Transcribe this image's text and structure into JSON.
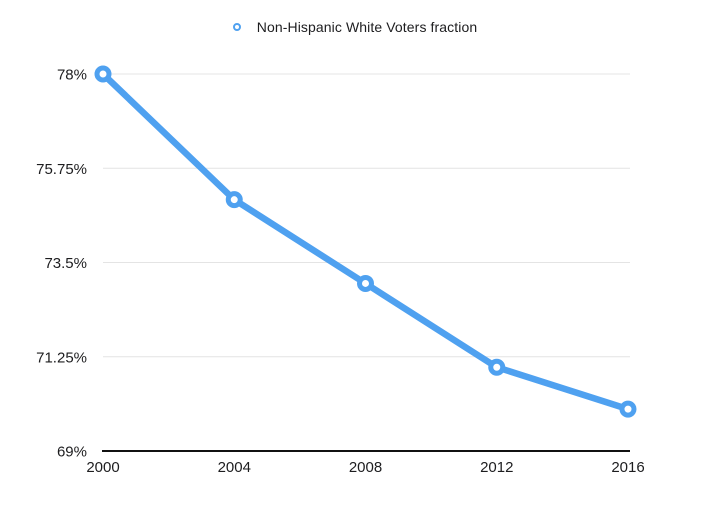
{
  "legend": {
    "label": "Non-Hispanic White Voters fraction",
    "marker": "ring-icon"
  },
  "chart_data": {
    "type": "line",
    "title": "",
    "xlabel": "",
    "ylabel": "",
    "x": [
      2000,
      2004,
      2008,
      2012,
      2016
    ],
    "x_tick_labels": [
      "2000",
      "2004",
      "2008",
      "2012",
      "2016"
    ],
    "series": [
      {
        "name": "Non-Hispanic White Voters fraction",
        "values": [
          78,
          75,
          73,
          71,
          70
        ]
      }
    ],
    "ylim": [
      69,
      78
    ],
    "y_ticks": [
      69,
      71.25,
      73.5,
      75.75,
      78
    ],
    "y_tick_labels": [
      "69%",
      "71.25%",
      "73.5%",
      "75.75%",
      "78%"
    ],
    "grid": true,
    "legend_position": "top-center",
    "marker_style": "open-circle",
    "colors": {
      "line": "#4fa1f0",
      "marker_fill": "#ffffff",
      "grid": "#e4e4e4",
      "axis": "#111111",
      "text": "#1d1d1f"
    }
  }
}
